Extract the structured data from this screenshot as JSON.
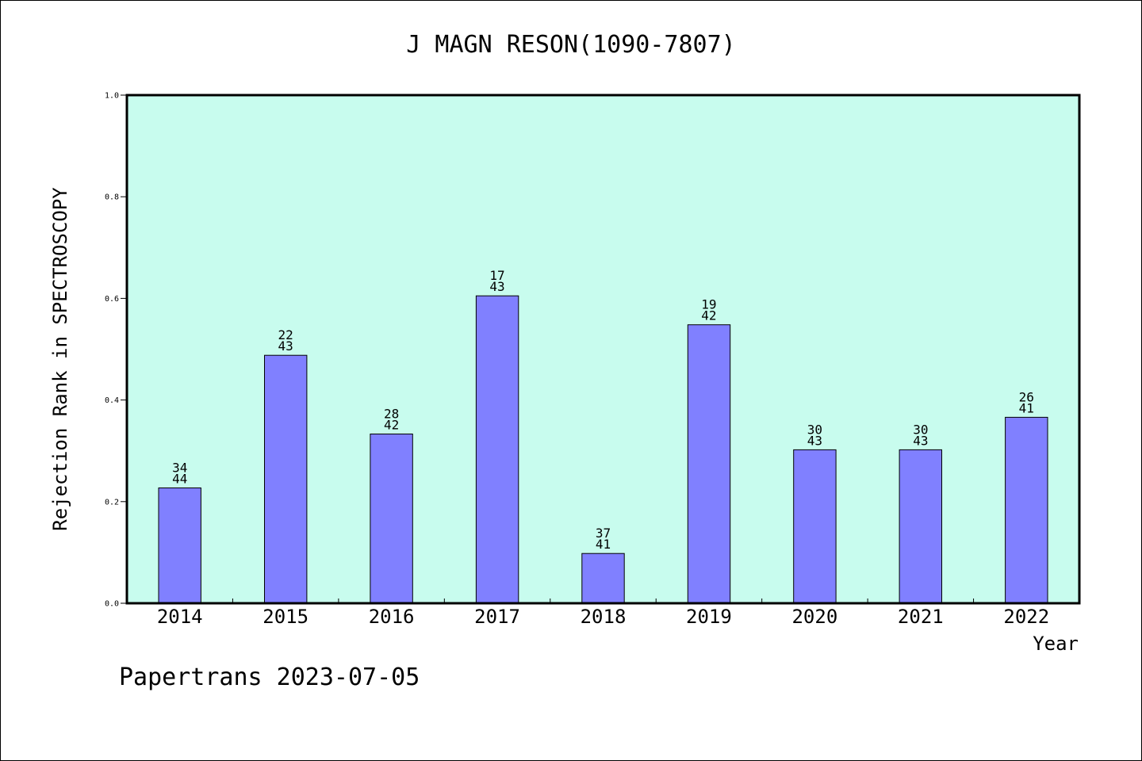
{
  "chart_data": {
    "type": "bar",
    "title": "J MAGN RESON(1090-7807)",
    "xlabel": "Year",
    "ylabel": "Rejection Rank in SPECTROSCOPY",
    "ylim": [
      0,
      1.0
    ],
    "yticks": [
      "0.0",
      "0.2",
      "0.4",
      "0.6",
      "0.8",
      "1.0"
    ],
    "categories": [
      "2014",
      "2015",
      "2016",
      "2017",
      "2018",
      "2019",
      "2020",
      "2021",
      "2022"
    ],
    "values": [
      0.227,
      0.488,
      0.333,
      0.605,
      0.098,
      0.548,
      0.302,
      0.302,
      0.366
    ],
    "bar_labels": [
      [
        "34",
        "44"
      ],
      [
        "22",
        "43"
      ],
      [
        "28",
        "42"
      ],
      [
        "17",
        "43"
      ],
      [
        "37",
        "41"
      ],
      [
        "19",
        "42"
      ],
      [
        "30",
        "43"
      ],
      [
        "30",
        "43"
      ],
      [
        "26",
        "41"
      ]
    ],
    "grid": false,
    "colors": {
      "plot_background": "#c8fcee",
      "bar_fill": "#8080ff",
      "bar_stroke": "#000000"
    }
  },
  "footer": "Papertrans 2023-07-05"
}
